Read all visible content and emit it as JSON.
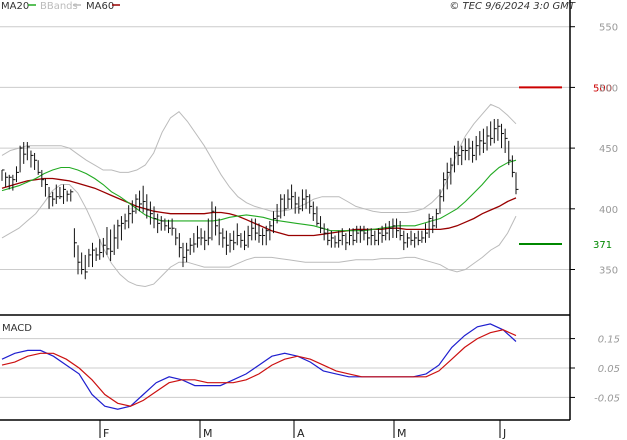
{
  "chart_data": {
    "type": "line",
    "instrument": "TEC",
    "timestamp": "© TEC 9/6/2024 3:0 GMT",
    "colors": {
      "price": "#111111",
      "ma20": "#22aa22",
      "bbands": "#bbbbbb",
      "ma60": "#990000",
      "macd": "#1f1fcf",
      "macd_signal": "#cc1111",
      "resistance": "#cc0000",
      "support": "#008800",
      "grid": "#cccccc",
      "frame": "#000000"
    },
    "legend": [
      {
        "label": "MA20",
        "color": "#22aa22"
      },
      {
        "label": "BBands",
        "color": "#bbbbbb"
      },
      {
        "label": "MA60",
        "color": "#990000"
      }
    ],
    "price_panel": {
      "ylim": [
        315,
        572
      ],
      "y_ticks": [
        350,
        400,
        450,
        500,
        550
      ],
      "y_tick_labels": [
        "350",
        "400",
        "450",
        "500",
        "550"
      ],
      "grid": true,
      "levels": [
        {
          "name": "resistance",
          "value": 500,
          "label": "500"
        },
        {
          "name": "support",
          "value": 371,
          "label": "371"
        }
      ],
      "bars": [
        [
          432,
          423,
          432
        ],
        [
          430,
          418,
          426
        ],
        [
          428,
          416,
          426
        ],
        [
          428,
          415,
          424
        ],
        [
          435,
          422,
          430
        ],
        [
          452,
          430,
          450
        ],
        [
          455,
          437,
          445
        ],
        [
          455,
          440,
          451
        ],
        [
          448,
          434,
          444
        ],
        [
          446,
          432,
          440
        ],
        [
          440,
          428,
          430
        ],
        [
          432,
          418,
          424
        ],
        [
          425,
          410,
          420
        ],
        [
          418,
          400,
          410
        ],
        [
          414,
          402,
          408
        ],
        [
          420,
          404,
          410
        ],
        [
          418,
          408,
          410
        ],
        [
          420,
          404,
          416
        ],
        [
          415,
          406,
          412
        ],
        [
          416,
          406,
          414
        ],
        [
          384,
          360,
          372
        ],
        [
          370,
          346,
          356
        ],
        [
          364,
          346,
          350
        ],
        [
          362,
          342,
          348
        ],
        [
          367,
          352,
          362
        ],
        [
          372,
          352,
          366
        ],
        [
          368,
          357,
          362
        ],
        [
          375,
          358,
          364
        ],
        [
          376,
          360,
          370
        ],
        [
          385,
          362,
          367
        ],
        [
          383,
          357,
          365
        ],
        [
          387,
          362,
          376
        ],
        [
          391,
          367,
          386
        ],
        [
          394,
          374,
          388
        ],
        [
          396,
          383,
          390
        ],
        [
          403,
          384,
          396
        ],
        [
          407,
          388,
          398
        ],
        [
          412,
          396,
          408
        ],
        [
          415,
          398,
          404
        ],
        [
          419,
          397,
          406
        ],
        [
          412,
          392,
          399
        ],
        [
          406,
          387,
          396
        ],
        [
          402,
          384,
          392
        ],
        [
          396,
          380,
          388
        ],
        [
          394,
          382,
          390
        ],
        [
          392,
          382,
          386
        ],
        [
          391,
          380,
          384
        ],
        [
          392,
          378,
          384
        ],
        [
          384,
          370,
          376
        ],
        [
          380,
          360,
          368
        ],
        [
          372,
          352,
          360
        ],
        [
          372,
          356,
          366
        ],
        [
          376,
          362,
          370
        ],
        [
          380,
          364,
          371
        ],
        [
          386,
          368,
          376
        ],
        [
          384,
          370,
          376
        ],
        [
          382,
          366,
          374
        ],
        [
          392,
          370,
          376
        ],
        [
          406,
          374,
          398
        ],
        [
          402,
          378,
          386
        ],
        [
          392,
          370,
          380
        ],
        [
          384,
          368,
          376
        ],
        [
          382,
          362,
          370
        ],
        [
          380,
          364,
          374
        ],
        [
          382,
          366,
          372
        ],
        [
          388,
          370,
          378
        ],
        [
          380,
          368,
          374
        ],
        [
          382,
          366,
          370
        ],
        [
          386,
          368,
          378
        ],
        [
          392,
          374,
          384
        ],
        [
          392,
          374,
          380
        ],
        [
          388,
          372,
          378
        ],
        [
          384,
          370,
          378
        ],
        [
          386,
          370,
          382
        ],
        [
          390,
          374,
          386
        ],
        [
          398,
          380,
          392
        ],
        [
          404,
          388,
          394
        ],
        [
          412,
          392,
          408
        ],
        [
          412,
          394,
          400
        ],
        [
          416,
          400,
          408
        ],
        [
          420,
          400,
          410
        ],
        [
          414,
          396,
          404
        ],
        [
          410,
          396,
          400
        ],
        [
          416,
          398,
          408
        ],
        [
          416,
          400,
          410
        ],
        [
          412,
          396,
          402
        ],
        [
          406,
          390,
          396
        ],
        [
          402,
          386,
          388
        ],
        [
          394,
          380,
          384
        ],
        [
          388,
          374,
          380
        ],
        [
          384,
          370,
          374
        ],
        [
          382,
          368,
          376
        ],
        [
          378,
          368,
          372
        ],
        [
          382,
          368,
          374
        ],
        [
          384,
          370,
          378
        ],
        [
          380,
          366,
          372
        ],
        [
          384,
          370,
          378
        ],
        [
          384,
          370,
          374
        ],
        [
          386,
          372,
          380
        ],
        [
          386,
          372,
          382
        ],
        [
          386,
          374,
          380
        ],
        [
          384,
          370,
          376
        ],
        [
          384,
          370,
          378
        ],
        [
          382,
          370,
          374
        ],
        [
          384,
          370,
          380
        ],
        [
          386,
          372,
          378
        ],
        [
          388,
          374,
          380
        ],
        [
          390,
          374,
          384
        ],
        [
          392,
          376,
          386
        ],
        [
          392,
          376,
          382
        ],
        [
          390,
          374,
          378
        ],
        [
          382,
          366,
          372
        ],
        [
          380,
          368,
          376
        ],
        [
          382,
          370,
          374
        ],
        [
          380,
          368,
          376
        ],
        [
          382,
          370,
          374
        ],
        [
          382,
          372,
          376
        ],
        [
          388,
          372,
          380
        ],
        [
          396,
          376,
          392
        ],
        [
          394,
          380,
          386
        ],
        [
          400,
          384,
          396
        ],
        [
          416,
          396,
          410
        ],
        [
          430,
          406,
          424
        ],
        [
          438,
          416,
          430
        ],
        [
          442,
          420,
          436
        ],
        [
          452,
          430,
          446
        ],
        [
          456,
          436,
          444
        ],
        [
          452,
          436,
          448
        ],
        [
          458,
          440,
          448
        ],
        [
          458,
          440,
          450
        ],
        [
          456,
          438,
          444
        ],
        [
          460,
          440,
          452
        ],
        [
          464,
          444,
          456
        ],
        [
          466,
          446,
          454
        ],
        [
          468,
          448,
          460
        ],
        [
          472,
          452,
          458
        ],
        [
          474,
          454,
          466
        ],
        [
          474,
          456,
          468
        ],
        [
          470,
          450,
          462
        ],
        [
          466,
          446,
          458
        ],
        [
          456,
          436,
          440
        ],
        [
          444,
          426,
          430
        ],
        [
          430,
          412,
          416
        ]
      ],
      "ma20": [
        415,
        417,
        419,
        422,
        425,
        429,
        432,
        434,
        434,
        432,
        429,
        425,
        420,
        414,
        410,
        405,
        400,
        395,
        392,
        390,
        390,
        390,
        390,
        390,
        390,
        390,
        391,
        393,
        394,
        395,
        394,
        393,
        391,
        390,
        389,
        388,
        387,
        386,
        384,
        382,
        382,
        382,
        382,
        382,
        383,
        384,
        385,
        386,
        386,
        386,
        388,
        390,
        392,
        396,
        400,
        406,
        413,
        420,
        428,
        434,
        438,
        440
      ],
      "bb_upper": [
        444,
        448,
        450,
        452,
        452,
        452,
        452,
        452,
        450,
        445,
        440,
        436,
        432,
        432,
        430,
        430,
        432,
        436,
        446,
        463,
        475,
        480,
        472,
        462,
        452,
        440,
        428,
        418,
        410,
        405,
        402,
        400,
        398,
        398,
        399,
        401,
        404,
        408,
        410,
        410,
        410,
        406,
        402,
        400,
        398,
        397,
        397,
        397,
        397,
        398,
        400,
        405,
        412,
        426,
        446,
        460,
        470,
        478,
        486,
        483,
        477,
        470
      ],
      "bb_lower": [
        376,
        380,
        384,
        390,
        396,
        405,
        415,
        420,
        420,
        413,
        400,
        385,
        368,
        355,
        346,
        340,
        337,
        336,
        338,
        345,
        352,
        356,
        356,
        354,
        352,
        352,
        352,
        352,
        355,
        358,
        360,
        360,
        360,
        359,
        358,
        357,
        356,
        356,
        356,
        356,
        356,
        357,
        358,
        358,
        358,
        359,
        359,
        359,
        360,
        360,
        358,
        356,
        354,
        350,
        348,
        350,
        355,
        360,
        366,
        370,
        380,
        394
      ],
      "ma60": [
        417,
        419,
        421,
        423,
        424,
        425,
        425,
        424,
        423,
        421,
        419,
        417,
        414,
        411,
        408,
        405,
        402,
        400,
        398,
        397,
        396,
        396,
        396,
        396,
        396,
        397,
        397,
        396,
        394,
        391,
        388,
        385,
        382,
        380,
        378,
        378,
        378,
        378,
        379,
        380,
        381,
        382,
        383,
        383,
        383,
        383,
        384,
        384,
        383,
        383,
        383,
        383,
        383,
        384,
        386,
        389,
        392,
        396,
        399,
        402,
        406,
        409
      ]
    },
    "macd_panel": {
      "title": "MACD",
      "ylim": [
        -12,
        22
      ],
      "y_ticks": [
        -5,
        5,
        15
      ],
      "y_tick_labels": [
        "-0.05",
        "0.05",
        "0.15"
      ],
      "grid": true,
      "macd": [
        8,
        10,
        11,
        11,
        9,
        6,
        3,
        -4,
        -8,
        -9,
        -8,
        -4,
        0,
        2,
        1,
        -1,
        -1,
        -1,
        1,
        3,
        6,
        9,
        10,
        9,
        7,
        4,
        3,
        2,
        2,
        2,
        2,
        2,
        2,
        3,
        6,
        12,
        16,
        19,
        20,
        18,
        14
      ],
      "signal": [
        6,
        7,
        9,
        10,
        10,
        8,
        5,
        1,
        -4,
        -7,
        -8,
        -6,
        -3,
        0,
        1,
        1,
        0,
        0,
        0,
        1,
        3,
        6,
        8,
        9,
        8,
        6,
        4,
        3,
        2,
        2,
        2,
        2,
        2,
        2,
        4,
        8,
        12,
        15,
        17,
        18,
        16
      ]
    },
    "x_axis": {
      "month_labels": [
        "F",
        "M",
        "A",
        "M",
        "J"
      ]
    }
  }
}
